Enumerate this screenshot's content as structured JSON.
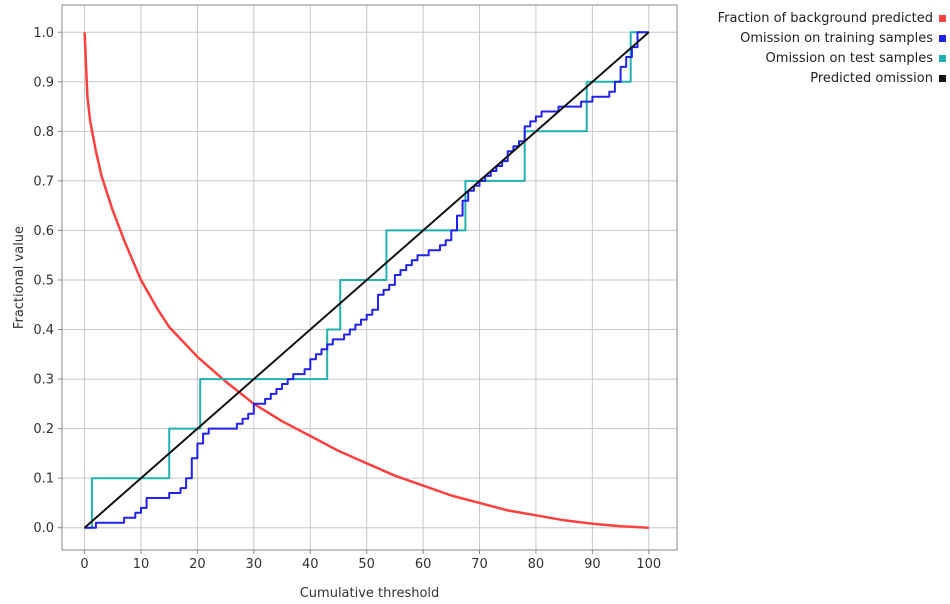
{
  "chart_data": {
    "type": "line",
    "xlabel": "Cumulative threshold",
    "ylabel": "Fractional value",
    "xlim": [
      -4,
      105
    ],
    "ylim": [
      -0.045,
      1.055
    ],
    "xticks": [
      0,
      10,
      20,
      30,
      40,
      50,
      60,
      70,
      80,
      90,
      100
    ],
    "yticks": [
      0.0,
      0.1,
      0.2,
      0.3,
      0.4,
      0.5,
      0.6,
      0.7,
      0.8,
      0.9,
      1.0
    ],
    "xtick_labels": [
      "0",
      "10",
      "20",
      "30",
      "40",
      "50",
      "60",
      "70",
      "80",
      "90",
      "100"
    ],
    "ytick_labels": [
      "0.0",
      "0.1",
      "0.2",
      "0.3",
      "0.4",
      "0.5",
      "0.6",
      "0.7",
      "0.8",
      "0.9",
      "1.0"
    ],
    "grid": true,
    "legend_position": "outside-top-right",
    "series": [
      {
        "name": "Fraction of background predicted",
        "color": "#ff4040",
        "x": [
          0,
          0.5,
          1,
          2,
          3,
          5,
          7,
          10,
          13,
          15,
          20,
          25,
          30,
          35,
          40,
          45,
          50,
          55,
          60,
          65,
          70,
          75,
          80,
          85,
          90,
          95,
          100
        ],
        "y": [
          1.0,
          0.87,
          0.82,
          0.76,
          0.71,
          0.64,
          0.58,
          0.5,
          0.44,
          0.405,
          0.345,
          0.295,
          0.25,
          0.215,
          0.185,
          0.155,
          0.13,
          0.105,
          0.085,
          0.065,
          0.05,
          0.035,
          0.025,
          0.015,
          0.008,
          0.003,
          0.0
        ]
      },
      {
        "name": "Omission on training samples",
        "color": "#2222ee",
        "x": [
          0,
          1,
          2,
          7,
          9,
          10,
          11,
          15,
          17,
          18,
          19,
          20,
          21,
          22,
          23,
          27,
          28,
          29,
          30,
          31,
          32,
          33,
          34,
          35,
          36,
          37,
          38,
          39,
          40,
          41,
          42,
          43,
          44,
          45,
          46,
          47,
          48,
          49,
          50,
          51,
          52,
          53,
          54,
          55,
          56,
          57,
          58,
          59,
          60,
          61,
          63,
          64,
          65,
          66,
          67,
          68,
          69,
          70,
          71,
          72,
          73,
          74,
          75,
          76,
          77,
          78,
          79,
          80,
          81,
          83,
          84,
          85,
          87,
          88,
          89,
          90,
          91,
          93,
          94,
          95,
          96,
          97,
          98,
          99,
          100
        ],
        "y": [
          0.0,
          0.0,
          0.01,
          0.02,
          0.03,
          0.04,
          0.06,
          0.07,
          0.08,
          0.1,
          0.14,
          0.17,
          0.19,
          0.2,
          0.2,
          0.21,
          0.22,
          0.23,
          0.25,
          0.25,
          0.26,
          0.27,
          0.28,
          0.29,
          0.3,
          0.31,
          0.31,
          0.32,
          0.34,
          0.35,
          0.36,
          0.37,
          0.38,
          0.38,
          0.39,
          0.4,
          0.41,
          0.42,
          0.43,
          0.44,
          0.47,
          0.48,
          0.49,
          0.51,
          0.52,
          0.53,
          0.54,
          0.55,
          0.55,
          0.56,
          0.57,
          0.58,
          0.6,
          0.63,
          0.66,
          0.68,
          0.69,
          0.7,
          0.71,
          0.72,
          0.73,
          0.74,
          0.76,
          0.77,
          0.78,
          0.81,
          0.82,
          0.83,
          0.84,
          0.84,
          0.85,
          0.85,
          0.85,
          0.86,
          0.86,
          0.87,
          0.87,
          0.88,
          0.9,
          0.93,
          0.95,
          0.97,
          1.0,
          1.0,
          1.0
        ],
        "step": true
      },
      {
        "name": "Omission on test samples",
        "color": "#22b0b0",
        "x": [
          0,
          1.3,
          15,
          20.5,
          43,
          45.3,
          53.5,
          67.5,
          78,
          89,
          96.8,
          100
        ],
        "y": [
          0.0,
          0.1,
          0.2,
          0.3,
          0.4,
          0.5,
          0.6,
          0.7,
          0.8,
          0.9,
          1.0,
          1.0
        ],
        "step": true
      },
      {
        "name": "Predicted omission",
        "color": "#111111",
        "x": [
          0,
          100
        ],
        "y": [
          0.0,
          1.0
        ]
      }
    ]
  }
}
